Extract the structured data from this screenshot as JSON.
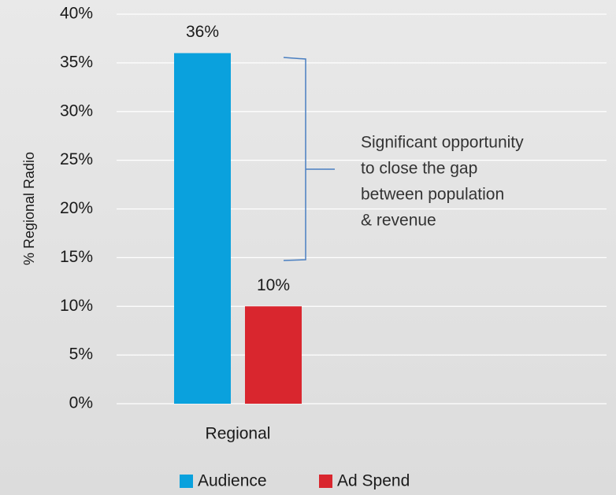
{
  "chart_data": {
    "type": "bar",
    "y_label": "% Regional Radio",
    "categories": [
      "Regional"
    ],
    "series": [
      {
        "name": "Audience",
        "color": "#0aa1dd",
        "values": [
          36
        ],
        "value_labels": [
          "36%"
        ]
      },
      {
        "name": "Ad Spend",
        "color": "#d9262e",
        "values": [
          10
        ],
        "value_labels": [
          "10%"
        ]
      }
    ],
    "ylim": [
      0,
      40
    ],
    "yticks": [
      {
        "value": 0,
        "label": "0%"
      },
      {
        "value": 5,
        "label": "5%"
      },
      {
        "value": 10,
        "label": "10%"
      },
      {
        "value": 15,
        "label": "15%"
      },
      {
        "value": 20,
        "label": "20%"
      },
      {
        "value": 25,
        "label": "25%"
      },
      {
        "value": 30,
        "label": "30%"
      },
      {
        "value": 35,
        "label": "35%"
      },
      {
        "value": 40,
        "label": "40%"
      }
    ],
    "grid": true,
    "legend": "bottom",
    "annotation": [
      "Significant opportunity",
      "to close the gap",
      "between population",
      "& revenue"
    ]
  }
}
